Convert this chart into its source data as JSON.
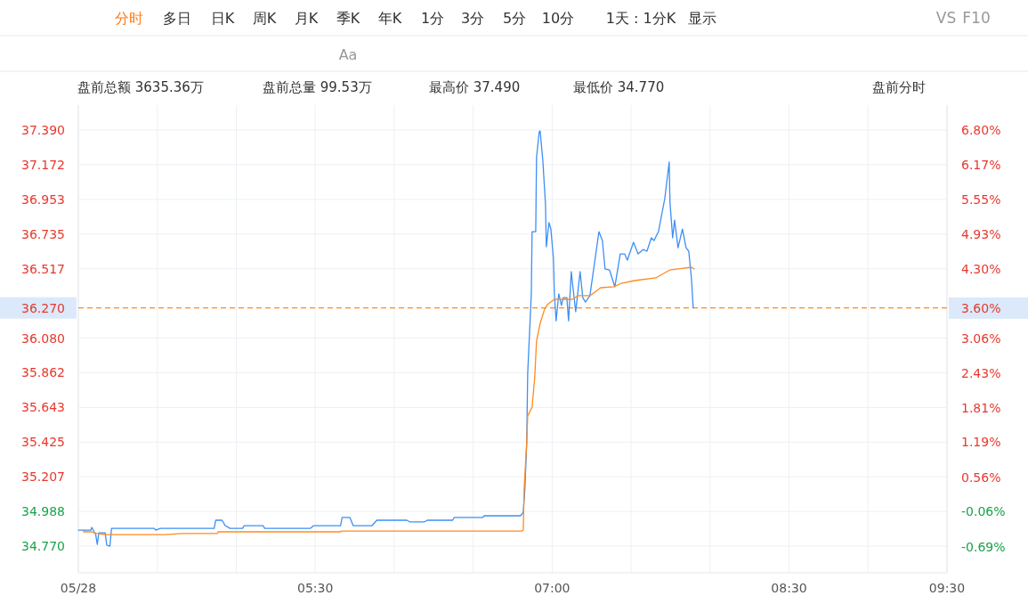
{
  "chart_data": {
    "type": "line",
    "xlim": [
      4,
      9.5
    ],
    "xticks": [
      {
        "value": 4,
        "label": "05/28"
      },
      {
        "value": 4.5,
        "label": null
      },
      {
        "value": 5,
        "label": null
      },
      {
        "value": 5.5,
        "label": "05:30"
      },
      {
        "value": 6,
        "label": null
      },
      {
        "value": 6.5,
        "label": null
      },
      {
        "value": 7,
        "label": "07:00"
      },
      {
        "value": 7.5,
        "label": null
      },
      {
        "value": 8,
        "label": null
      },
      {
        "value": 8.5,
        "label": "08:30"
      },
      {
        "value": 9,
        "label": null
      },
      {
        "value": 9.5,
        "label": "09:30"
      }
    ],
    "ylim": [
      34.602,
      37.547
    ],
    "yticks": [
      {
        "value": 37.39,
        "label": "37.390"
      },
      {
        "value": 37.172,
        "label": "37.172"
      },
      {
        "value": 36.953,
        "label": "36.953"
      },
      {
        "value": 36.735,
        "label": "36.735"
      },
      {
        "value": 36.517,
        "label": "36.517"
      },
      {
        "value": 36.08,
        "label": "36.080"
      },
      {
        "value": 35.862,
        "label": "35.862"
      },
      {
        "value": 35.643,
        "label": "35.643"
      },
      {
        "value": 35.425,
        "label": "35.425"
      },
      {
        "value": 35.207,
        "label": "35.207"
      },
      {
        "value": 34.988,
        "label": "34.988"
      },
      {
        "value": 34.77,
        "label": "34.770"
      }
    ],
    "y2lim": [
      -1.16,
      7.25
    ],
    "y2ticks": [
      {
        "value": 6.8,
        "label": "6.80%"
      },
      {
        "value": 6.17,
        "label": "6.17%"
      },
      {
        "value": 5.55,
        "label": "5.55%"
      },
      {
        "value": 4.93,
        "label": "4.93%"
      },
      {
        "value": 4.3,
        "label": "4.30%"
      },
      {
        "value": 3.6,
        "label": "3.60%"
      },
      {
        "value": 3.06,
        "label": "3.06%"
      },
      {
        "value": 2.43,
        "label": "2.43%"
      },
      {
        "value": 1.81,
        "label": "1.81%"
      },
      {
        "value": 1.19,
        "label": "1.19%"
      },
      {
        "value": 0.56,
        "label": "0.56%"
      },
      {
        "value": -0.06,
        "label": "-0.06%"
      },
      {
        "value": -0.69,
        "label": "-0.69%"
      }
    ],
    "grid": true,
    "ref_lines": [
      {
        "axis": "y",
        "value": 36.27,
        "label": "36.270",
        "color": "#ff8a1f",
        "line_style": "dashed"
      }
    ],
    "series": [
      {
        "color": "#3d8ff5",
        "x": [
          4.0,
          4.08,
          4.085,
          4.11,
          4.12,
          4.13,
          4.17,
          4.18,
          4.2,
          4.21,
          4.48,
          4.49,
          4.52,
          4.86,
          4.87,
          4.91,
          4.93,
          4.96,
          5.04,
          5.05,
          5.17,
          5.18,
          5.47,
          5.49,
          5.66,
          5.67,
          5.72,
          5.74,
          5.86,
          5.89,
          6.08,
          6.1,
          6.19,
          6.21,
          6.37,
          6.38,
          6.56,
          6.57,
          6.8,
          6.817,
          6.828,
          6.839,
          6.845,
          6.868,
          6.873,
          6.896,
          6.901,
          6.918,
          6.924,
          6.941,
          6.958,
          6.963,
          6.98,
          6.992,
          7.008,
          7.014,
          7.025,
          7.042,
          7.059,
          7.07,
          7.093,
          7.104,
          7.121,
          7.132,
          7.149,
          7.177,
          7.194,
          7.211,
          7.239,
          7.262,
          7.296,
          7.318,
          7.335,
          7.363,
          7.397,
          7.431,
          7.459,
          7.476,
          7.515,
          7.544,
          7.577,
          7.6,
          7.628,
          7.645,
          7.673,
          7.713,
          7.741,
          7.746,
          7.763,
          7.775,
          7.797,
          7.825,
          7.848,
          7.865,
          7.882,
          7.893
        ],
        "values": [
          34.871,
          34.871,
          34.888,
          34.843,
          34.781,
          34.854,
          34.854,
          34.776,
          34.77,
          34.882,
          34.882,
          34.871,
          34.882,
          34.882,
          34.933,
          34.933,
          34.899,
          34.882,
          34.882,
          34.899,
          34.899,
          34.882,
          34.882,
          34.899,
          34.899,
          34.95,
          34.95,
          34.899,
          34.899,
          34.933,
          34.933,
          34.922,
          34.922,
          34.933,
          34.933,
          34.95,
          34.95,
          34.961,
          34.961,
          34.983,
          35.14,
          35.421,
          35.853,
          36.358,
          36.75,
          36.75,
          37.216,
          37.379,
          37.384,
          37.199,
          36.919,
          36.655,
          36.807,
          36.767,
          36.582,
          36.358,
          36.189,
          36.358,
          36.285,
          36.335,
          36.335,
          36.189,
          36.498,
          36.397,
          36.246,
          36.498,
          36.335,
          36.307,
          36.347,
          36.509,
          36.75,
          36.694,
          36.515,
          36.509,
          36.403,
          36.61,
          36.61,
          36.571,
          36.683,
          36.61,
          36.638,
          36.627,
          36.711,
          36.694,
          36.75,
          36.958,
          37.188,
          36.936,
          36.711,
          36.823,
          36.649,
          36.767,
          36.649,
          36.627,
          36.453,
          36.27
        ]
      },
      {
        "color": "#ff8a1f",
        "x": [
          4.03,
          4.034,
          4.07,
          4.085,
          4.1,
          4.12,
          4.17,
          4.55,
          4.66,
          4.88,
          4.885,
          5.66,
          5.665,
          6.811,
          6.817,
          6.823,
          6.839,
          6.845,
          6.873,
          6.89,
          6.901,
          6.924,
          6.952,
          6.969,
          7.014,
          7.127,
          7.166,
          7.239,
          7.307,
          7.392,
          7.437,
          7.521,
          7.656,
          7.746,
          7.797,
          7.882,
          7.899
        ],
        "values": [
          34.871,
          34.86,
          34.86,
          34.86,
          34.854,
          34.849,
          34.843,
          34.843,
          34.849,
          34.849,
          34.86,
          34.86,
          34.865,
          34.865,
          34.871,
          35.14,
          35.421,
          35.59,
          35.645,
          35.836,
          36.06,
          36.173,
          36.262,
          36.29,
          36.324,
          36.324,
          36.347,
          36.347,
          36.397,
          36.403,
          36.425,
          36.442,
          36.459,
          36.509,
          36.515,
          36.526,
          36.515
        ]
      }
    ],
    "annotations": [
      "分时",
      "多日",
      "日K",
      "周K",
      "月K",
      "季K",
      "年K",
      "1分",
      "3分",
      "5分",
      "10分",
      "1天 : 1分K",
      "显示",
      "VS",
      "F10",
      "Aa",
      "盘前总额 3635.36万",
      "盘前总量 99.53万",
      "最高价 37.490",
      "最低价 34.770",
      "盘前分时"
    ]
  }
}
